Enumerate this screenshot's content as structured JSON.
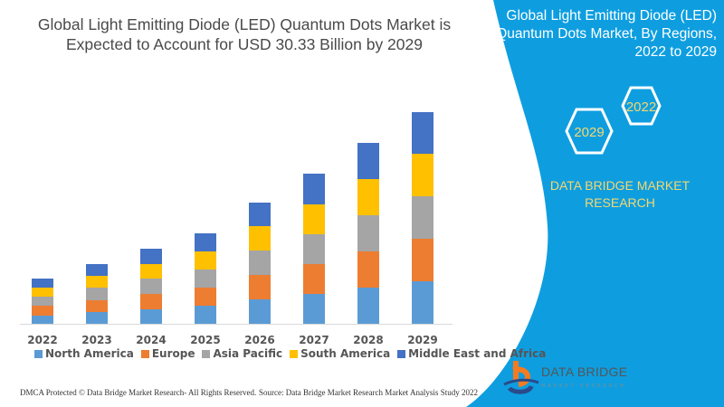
{
  "title": "Global Light Emitting Diode (LED) Quantum Dots Market is Expected to Account for USD 30.33 Billion by 2029",
  "side_panel": {
    "title": "Global Light Emitting Diode (LED) Quantum Dots Market, By Regions, 2022 to 2029",
    "hex_years": [
      "2022",
      "2029"
    ],
    "brand": "DATA BRIDGE MARKET RESEARCH",
    "logo_text": "DATA BRIDGE",
    "logo_sub": "MARKET RESEARCH",
    "color": "#0e9ee0"
  },
  "footer": {
    "left": "DMCA Protected © Data Bridge Market Research- All Rights Reserved.",
    "right": "Source: Data Bridge Market Research Market Analysis Study 2022"
  },
  "chart_data": {
    "type": "bar",
    "stacked": true,
    "categories": [
      "2022",
      "2023",
      "2024",
      "2025",
      "2026",
      "2027",
      "2028",
      "2029"
    ],
    "series": [
      {
        "name": "North America",
        "color": "#5b9bd5",
        "values": [
          9,
          13,
          16,
          20,
          27,
          33,
          40,
          47
        ]
      },
      {
        "name": "Europe",
        "color": "#ed7d31",
        "values": [
          11,
          13,
          17,
          20,
          27,
          33,
          40,
          47
        ]
      },
      {
        "name": "Asia Pacific",
        "color": "#a5a5a5",
        "values": [
          10,
          14,
          17,
          20,
          27,
          33,
          40,
          47
        ]
      },
      {
        "name": "South America",
        "color": "#ffc000",
        "values": [
          10,
          13,
          16,
          20,
          27,
          33,
          40,
          47
        ]
      },
      {
        "name": "Middle East and Africa",
        "color": "#4472c4",
        "values": [
          10,
          13,
          17,
          20,
          26,
          34,
          40,
          46
        ]
      }
    ],
    "grid": false,
    "legend": "bottom"
  }
}
